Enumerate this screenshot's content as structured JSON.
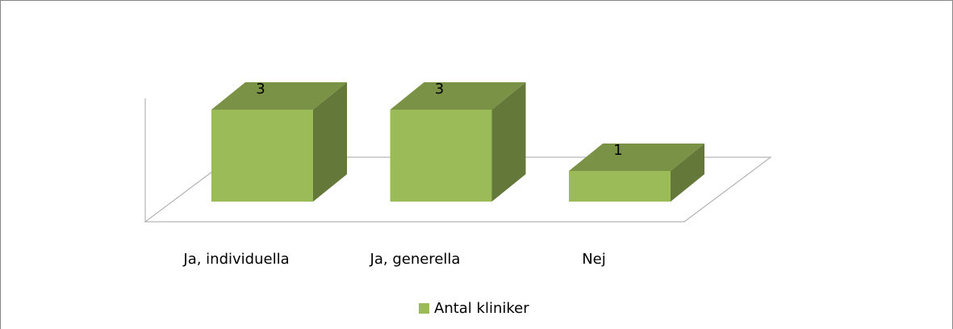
{
  "chart_data": {
    "type": "bar3d",
    "categories": [
      "Ja, individuella",
      "Ja, generella",
      "Nej"
    ],
    "series": [
      {
        "name": "Antal kliniker",
        "color": "#9bbb59",
        "values": [
          3,
          3,
          1
        ]
      }
    ],
    "legend": "bottom"
  }
}
